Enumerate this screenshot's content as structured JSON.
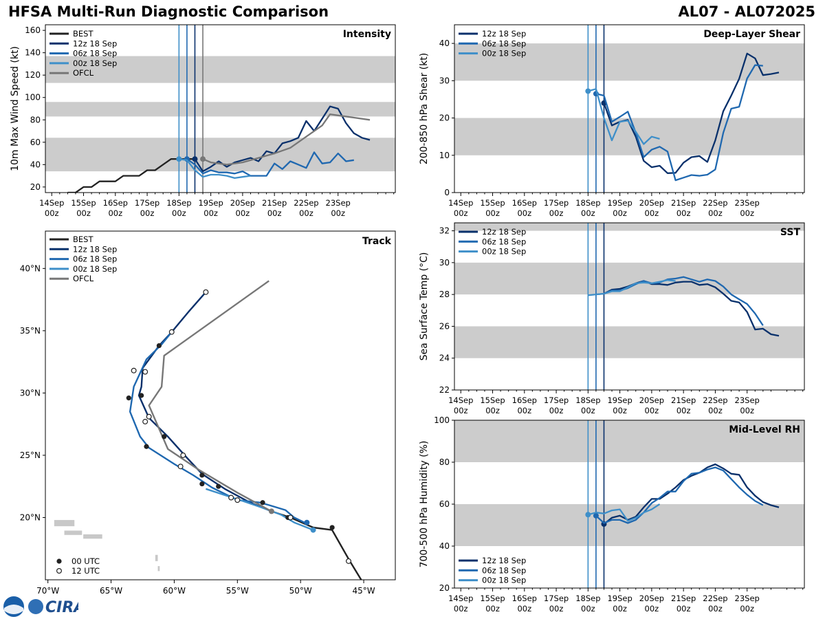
{
  "header": {
    "title_left": "HFSA Multi-Run Diagnostic Comparison",
    "title_right": "AL07 - AL072025"
  },
  "logo": {
    "noaa": "NOAA",
    "cira": "CIRA"
  },
  "colors": {
    "best": "#222222",
    "r12": "#08306b",
    "r06": "#1f68b0",
    "r00": "#3e8fc9",
    "ofcl": "#777777",
    "band": "#cccccc"
  },
  "runs": [
    {
      "key": "r12",
      "label": "12z 18 Sep",
      "init_day": 18.5
    },
    {
      "key": "r06",
      "label": "06z 18 Sep",
      "init_day": 18.25
    },
    {
      "key": "r00",
      "label": "00z 18 Sep",
      "init_day": 18.0
    }
  ],
  "time_axis": {
    "xlim": [
      13.8,
      24.8
    ],
    "ticks": [
      14,
      15,
      16,
      17,
      18,
      19,
      20,
      21,
      22,
      23
    ],
    "tick_labels": [
      {
        "top": "14Sep",
        "bottom": "00z"
      },
      {
        "top": "15Sep",
        "bottom": "00z"
      },
      {
        "top": "16Sep",
        "bottom": "00z"
      },
      {
        "top": "17Sep",
        "bottom": "00z"
      },
      {
        "top": "18Sep",
        "bottom": "00z"
      },
      {
        "top": "19Sep",
        "bottom": "00z"
      },
      {
        "top": "20Sep",
        "bottom": "00z"
      },
      {
        "top": "21Sep",
        "bottom": "00z"
      },
      {
        "top": "22Sep",
        "bottom": "00z"
      },
      {
        "top": "23Sep",
        "bottom": "00z"
      }
    ]
  },
  "chart_data": [
    {
      "id": "intensity",
      "type": "line",
      "title": "Intensity",
      "ylabel": "10m Max Wind Speed (kt)",
      "ylim": [
        15,
        165
      ],
      "yticks": [
        20,
        40,
        60,
        80,
        100,
        120,
        140,
        160
      ],
      "bands": [
        [
          34,
          64
        ],
        [
          83,
          96
        ],
        [
          113,
          137
        ]
      ],
      "vlines": [
        18.0,
        18.25,
        18.5,
        18.75
      ],
      "legend": [
        "BEST",
        "12z 18 Sep",
        "06z 18 Sep",
        "00z 18 Sep",
        "OFCL"
      ],
      "series": [
        {
          "name": "BEST",
          "color_key": "best",
          "x": [
            14.5,
            14.75,
            15,
            15.25,
            15.5,
            15.75,
            16,
            16.25,
            16.5,
            16.75,
            17,
            17.25,
            17.5,
            17.75,
            18,
            18.25,
            18.5
          ],
          "y": [
            15,
            15,
            20,
            20,
            25,
            25,
            25,
            30,
            30,
            30,
            35,
            35,
            40,
            45,
            45,
            45,
            45
          ]
        },
        {
          "name": "12z 18 Sep",
          "color_key": "r12",
          "marker_x": 18.5,
          "x": [
            18.5,
            18.75,
            19,
            19.25,
            19.5,
            19.75,
            20,
            20.25,
            20.5,
            20.75,
            21,
            21.25,
            21.5,
            21.75,
            22,
            22.25,
            22.5,
            22.75,
            23,
            23.25,
            23.5,
            23.75,
            24
          ],
          "y": [
            45,
            34,
            38,
            43,
            38,
            42,
            44,
            46,
            43,
            52,
            50,
            59,
            61,
            64,
            79,
            70,
            81,
            92,
            90,
            77,
            68,
            64,
            62
          ]
        },
        {
          "name": "06z 18 Sep",
          "color_key": "r06",
          "marker_x": 18.25,
          "x": [
            18.25,
            18.5,
            18.75,
            19,
            19.25,
            19.5,
            19.75,
            20,
            20.25,
            20.5,
            20.75,
            21,
            21.25,
            21.5,
            21.75,
            22,
            22.25,
            22.5,
            22.75,
            23,
            23.25,
            23.5
          ],
          "y": [
            45,
            40,
            32,
            35,
            33,
            33,
            32,
            34,
            30,
            30,
            30,
            41,
            36,
            43,
            40,
            37,
            51,
            41,
            42,
            50,
            43,
            44
          ]
        },
        {
          "name": "00z 18 Sep",
          "color_key": "r00",
          "marker_x": 18.0,
          "x": [
            18.0,
            18.25,
            18.5,
            18.75,
            19,
            19.25,
            19.5,
            19.75,
            20,
            20.25
          ],
          "y": [
            45,
            44,
            35,
            29,
            31,
            31,
            30,
            28,
            29,
            30
          ]
        },
        {
          "name": "OFCL",
          "color_key": "ofcl",
          "marker_x": 18.75,
          "x": [
            18.75,
            19,
            19.5,
            20,
            20.5,
            21,
            21.5,
            22,
            22.5,
            22.75,
            23,
            23.5,
            24
          ],
          "y": [
            45,
            42,
            40,
            42,
            46,
            50,
            55,
            65,
            75,
            85,
            84,
            82,
            80
          ]
        }
      ]
    },
    {
      "id": "shear",
      "type": "line",
      "title": "Deep-Layer Shear",
      "ylabel": "200-850 hPa Shear (kt)",
      "ylim": [
        0,
        45
      ],
      "yticks": [
        0,
        10,
        20,
        30,
        40
      ],
      "bands": [
        [
          10,
          20
        ],
        [
          30,
          40
        ]
      ],
      "vlines": [
        18.0,
        18.25,
        18.5
      ],
      "legend": [
        "12z 18 Sep",
        "06z 18 Sep",
        "00z 18 Sep"
      ],
      "series": [
        {
          "name": "12z 18 Sep",
          "color_key": "r12",
          "marker_x": 18.5,
          "x": [
            18.5,
            18.75,
            19,
            19.25,
            19.5,
            19.75,
            20,
            20.25,
            20.5,
            20.75,
            21,
            21.25,
            21.5,
            21.75,
            22,
            22.25,
            22.5,
            22.75,
            23,
            23.25,
            23.5,
            23.75,
            24
          ],
          "y": [
            24,
            18,
            19,
            19.5,
            15,
            8.5,
            6.8,
            7.2,
            5.2,
            5.3,
            8,
            9.5,
            9.8,
            8.2,
            14,
            21.8,
            26,
            30.5,
            37.3,
            36,
            31.5,
            31.8,
            32.2
          ]
        },
        {
          "name": "06z 18 Sep",
          "color_key": "r06",
          "marker_x": 18.25,
          "x": [
            18.25,
            18.5,
            18.75,
            19,
            19.25,
            19.5,
            19.75,
            20,
            20.25,
            20.5,
            20.75,
            21,
            21.25,
            21.5,
            21.75,
            22,
            22.25,
            22.5,
            22.75,
            23,
            23.25,
            23.5
          ],
          "y": [
            26.5,
            26,
            19,
            20.3,
            21.7,
            16,
            9.5,
            11.5,
            12.3,
            11,
            3.3,
            4,
            4.7,
            4.5,
            4.8,
            6.2,
            16,
            22.5,
            23,
            30.6,
            34.2,
            34
          ]
        },
        {
          "name": "00z 18 Sep",
          "color_key": "r00",
          "marker_x": 18.0,
          "x": [
            18.0,
            18.25,
            18.5,
            18.75,
            19,
            19.25,
            19.5,
            19.75,
            20,
            20.25
          ],
          "y": [
            27.2,
            27.8,
            20,
            14,
            19,
            19.3,
            16.3,
            13,
            15,
            14.4
          ]
        }
      ]
    },
    {
      "id": "sst",
      "type": "line",
      "title": "SST",
      "ylabel": "Sea Surface Temp (°C)",
      "ylim": [
        22,
        32.5
      ],
      "yticks": [
        22,
        24,
        26,
        28,
        30,
        32
      ],
      "bands": [
        [
          24,
          26
        ],
        [
          28,
          30
        ],
        [
          32,
          34
        ]
      ],
      "vlines": [
        18.0,
        18.25,
        18.5
      ],
      "legend": [
        "12z 18 Sep",
        "06z 18 Sep",
        "00z 18 Sep"
      ],
      "series": [
        {
          "name": "12z 18 Sep",
          "color_key": "r12",
          "x": [
            18.5,
            18.75,
            19,
            19.25,
            19.5,
            19.75,
            20,
            20.25,
            20.5,
            20.75,
            21,
            21.25,
            21.5,
            21.75,
            22,
            22.25,
            22.5,
            22.75,
            23,
            23.25,
            23.5,
            23.75,
            24
          ],
          "y": [
            28.05,
            28.3,
            28.35,
            28.5,
            28.7,
            28.85,
            28.65,
            28.65,
            28.6,
            28.75,
            28.8,
            28.8,
            28.6,
            28.65,
            28.45,
            28.05,
            27.6,
            27.5,
            26.9,
            25.8,
            25.85,
            25.5,
            25.4
          ]
        },
        {
          "name": "06z 18 Sep",
          "color_key": "r06",
          "x": [
            18.25,
            18.5,
            18.75,
            19,
            19.25,
            19.5,
            19.75,
            20,
            20.25,
            20.5,
            20.75,
            21,
            21.25,
            21.5,
            21.75,
            22,
            22.25,
            22.5,
            22.75,
            23,
            23.25,
            23.5
          ],
          "y": [
            28.0,
            28.05,
            28.25,
            28.25,
            28.4,
            28.65,
            28.85,
            28.7,
            28.75,
            28.95,
            29.0,
            29.1,
            28.95,
            28.8,
            28.95,
            28.85,
            28.5,
            28.0,
            27.7,
            27.4,
            26.8,
            26.05
          ]
        },
        {
          "name": "00z 18 Sep",
          "color_key": "r00",
          "x": [
            18.0,
            18.25,
            18.5,
            18.75,
            19,
            19.25,
            19.5,
            19.75,
            20,
            20.25,
            20.5,
            20.75
          ],
          "y": [
            27.95,
            28.0,
            28.05,
            28.2,
            28.2,
            28.45,
            28.7,
            28.75,
            28.7,
            28.8,
            28.9,
            28.85
          ]
        }
      ]
    },
    {
      "id": "rh",
      "type": "line",
      "title": "Mid-Level RH",
      "ylabel": "700-500 hPa Humidity (%)",
      "ylim": [
        20,
        100
      ],
      "yticks": [
        20,
        40,
        60,
        80,
        100
      ],
      "bands": [
        [
          40,
          60
        ],
        [
          80,
          100
        ]
      ],
      "vlines": [
        18.0,
        18.25,
        18.5
      ],
      "legend": [
        "12z 18 Sep",
        "06z 18 Sep",
        "00z 18 Sep"
      ],
      "series": [
        {
          "name": "12z 18 Sep",
          "color_key": "r12",
          "marker_x": 18.5,
          "x": [
            18.5,
            18.75,
            19,
            19.25,
            19.5,
            19.75,
            20,
            20.25,
            20.5,
            20.75,
            21,
            21.25,
            21.5,
            21.75,
            22,
            22.25,
            22.5,
            22.75,
            23,
            23.25,
            23.5,
            23.75,
            24
          ],
          "y": [
            50.5,
            53.5,
            54.5,
            52.5,
            54,
            58.5,
            62.5,
            62.5,
            65,
            68,
            71.5,
            73.5,
            75,
            77.5,
            79,
            77,
            74.5,
            74,
            68,
            64,
            61,
            59.5,
            58.5
          ]
        },
        {
          "name": "06z 18 Sep",
          "color_key": "r06",
          "marker_x": 18.25,
          "x": [
            18.25,
            18.5,
            18.75,
            19,
            19.25,
            19.5,
            19.75,
            20,
            20.25,
            20.5,
            20.75,
            21,
            21.25,
            21.5,
            21.75,
            22,
            22.25,
            22.5,
            22.75,
            23,
            23.25,
            23.5
          ],
          "y": [
            54.5,
            51,
            52.5,
            52.5,
            51,
            52.5,
            56,
            60.5,
            63,
            66,
            66,
            71,
            74.5,
            75,
            76.5,
            77.5,
            76,
            72,
            68,
            64.5,
            61.5,
            59.5
          ]
        },
        {
          "name": "00z 18 Sep",
          "color_key": "r00",
          "marker_x": 18.0,
          "x": [
            18.0,
            18.25,
            18.5,
            18.75,
            19,
            19.25,
            19.5,
            19.75,
            20,
            20.25
          ],
          "y": [
            55,
            56,
            55.5,
            57,
            57.5,
            52,
            53.5,
            56,
            57.5,
            60
          ]
        }
      ]
    },
    {
      "id": "track",
      "type": "line",
      "title": "Track",
      "xlim": [
        -70.2,
        -42.5
      ],
      "ylim": [
        15,
        43
      ],
      "xticks": [
        -70,
        -65,
        -60,
        -55,
        -50,
        -45
      ],
      "xtick_labels": [
        "70°W",
        "65°W",
        "60°W",
        "55°W",
        "50°W",
        "45°W"
      ],
      "yticks": [
        20,
        25,
        30,
        35,
        40
      ],
      "ytick_labels": [
        "20°N",
        "25°N",
        "30°N",
        "35°N",
        "40°N"
      ],
      "legend": [
        "BEST",
        "12z 18 Sep",
        "06z 18 Sep",
        "00z 18 Sep",
        "OFCL"
      ],
      "marker_legend": [
        "00 UTC",
        "12 UTC"
      ],
      "series": [
        {
          "name": "BEST",
          "color_key": "best",
          "lon": [
            -45.2,
            -46.1,
            -47.5,
            -49,
            -50.8,
            -52.3
          ],
          "lat": [
            15,
            16.5,
            19,
            19.2,
            20,
            20.5
          ]
        },
        {
          "name": "12z 18 Sep",
          "color_key": "r12",
          "lon": [
            -52.3,
            -54,
            -56,
            -57.8,
            -59,
            -60.5,
            -62,
            -62.8,
            -62.6,
            -62.5,
            -61.2,
            -60.2,
            -58.8,
            -57.5
          ],
          "lat": [
            20.5,
            21.2,
            22.3,
            23.5,
            24.8,
            26.5,
            28,
            29.8,
            30.5,
            32,
            33.8,
            34.9,
            36.6,
            38.1
          ]
        },
        {
          "name": "06z 18 Sep",
          "color_key": "r06",
          "lon": [
            -49.5,
            -50.5,
            -51.2,
            -52.5,
            -53.2,
            -55,
            -57,
            -58.5,
            -60,
            -62,
            -62.7,
            -63.5,
            -63.2,
            -62.2,
            -61,
            -60.2
          ],
          "lat": [
            19.5,
            20,
            20.6,
            21,
            21.2,
            21.4,
            22.4,
            23.4,
            24.3,
            25.6,
            26.5,
            28.5,
            30.5,
            32.7,
            33.9,
            34.9
          ]
        },
        {
          "name": "00z 18 Sep",
          "color_key": "r00",
          "lon": [
            -49,
            -50.5,
            -51.5,
            -52.5,
            -54.5,
            -56,
            -57.5
          ],
          "lat": [
            19,
            19.6,
            20.2,
            20.6,
            21.3,
            21.8,
            22.3
          ]
        },
        {
          "name": "OFCL",
          "color_key": "ofcl",
          "lon": [
            -52.3,
            -55,
            -58,
            -60.5,
            -62,
            -61,
            -60.8,
            -52.5
          ],
          "lat": [
            20.5,
            22,
            23.8,
            25.5,
            29,
            30.5,
            33,
            39
          ]
        }
      ],
      "markers_00": [
        [
          -47.5,
          19.2
        ],
        [
          -51,
          20
        ],
        [
          -53,
          21.2
        ],
        [
          -56.5,
          22.5
        ],
        [
          -57.8,
          22.7
        ],
        [
          -57.8,
          23.4
        ],
        [
          -62.2,
          25.7
        ],
        [
          -60.8,
          26.5
        ],
        [
          -63.6,
          29.6
        ],
        [
          -62.6,
          29.8
        ],
        [
          -61.2,
          33.8
        ]
      ],
      "markers_12": [
        [
          -46.2,
          16.5
        ],
        [
          -50.8,
          20
        ],
        [
          -55,
          21.4
        ],
        [
          -55.5,
          21.6
        ],
        [
          -59.5,
          24.1
        ],
        [
          -59.3,
          25.0
        ],
        [
          -62.3,
          27.7
        ],
        [
          -62,
          28.1
        ],
        [
          -63.2,
          31.8
        ],
        [
          -62.3,
          31.7
        ],
        [
          -60.2,
          34.9
        ],
        [
          -57.5,
          38.1
        ]
      ]
    }
  ]
}
